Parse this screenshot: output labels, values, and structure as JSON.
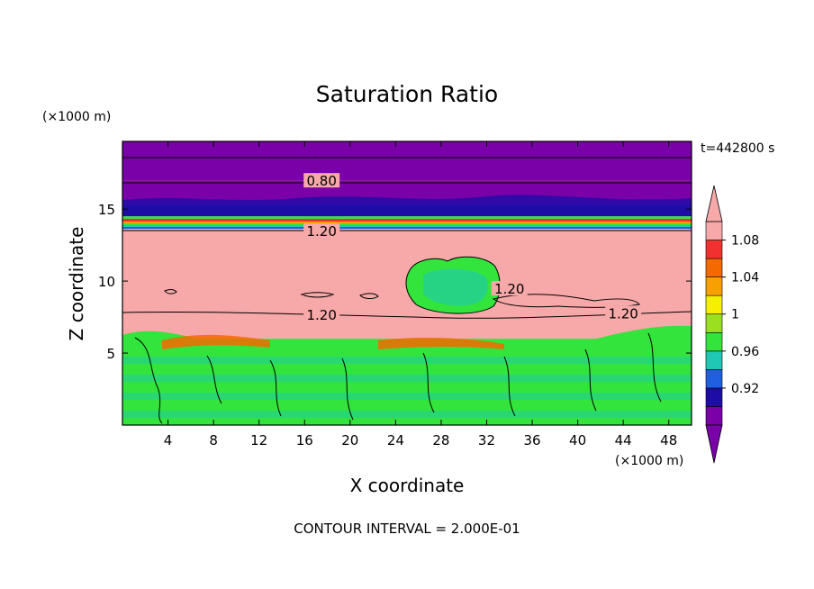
{
  "chart_data": {
    "type": "heatmap",
    "title": "Saturation Ratio",
    "xlabel": "X coordinate",
    "ylabel": "Z coordinate",
    "x_unit": "(×1000 m)",
    "y_unit": "(×1000 m)",
    "time_label": "t=442800 s",
    "footer": "CONTOUR INTERVAL = 2.000E-01",
    "xlim": [
      0,
      50
    ],
    "ylim": [
      0,
      19.7
    ],
    "x_ticks": [
      4,
      8,
      12,
      16,
      20,
      24,
      28,
      32,
      36,
      40,
      44,
      48
    ],
    "y_ticks": [
      5,
      10,
      15
    ],
    "contour_labels": [
      {
        "text": "0.80",
        "x": 17.5,
        "z": 17.0
      },
      {
        "text": "1.20",
        "x": 17.5,
        "z": 13.5
      },
      {
        "text": "1.20",
        "x": 34.0,
        "z": 9.5
      },
      {
        "text": "1.20",
        "x": 17.5,
        "z": 7.7
      },
      {
        "text": "1.20",
        "x": 44.0,
        "z": 7.8
      }
    ],
    "colorbar": {
      "levels": [
        0.92,
        0.96,
        1,
        1.04,
        1.08
      ],
      "level_labels": [
        "0.92",
        "0.96",
        "1",
        "1.04",
        "1.08"
      ],
      "colors": [
        "#7a00a8",
        "#1e0ca6",
        "#1f5fe0",
        "#1ec8b4",
        "#33e43c",
        "#9be020",
        "#f5f000",
        "#f7a100",
        "#f56a00",
        "#f23030",
        "#f7a8a8"
      ],
      "extend": "both"
    },
    "field_layers": [
      {
        "z_from": 0.0,
        "z_to": 6.0,
        "value": 1.0,
        "color": "#33e43c"
      },
      {
        "z_from": 6.0,
        "z_to": 13.9,
        "value": 1.12,
        "color": "#f7a8a8"
      },
      {
        "z_from": 13.9,
        "z_to": 14.5,
        "value": 1.0,
        "color": "#33e43c"
      },
      {
        "z_from": 14.5,
        "z_to": 15.3,
        "value": 0.94,
        "color": "#1e0ca6"
      },
      {
        "z_from": 15.3,
        "z_to": 17.0,
        "value": 0.9,
        "color": "#7a00a8"
      },
      {
        "z_from": 17.0,
        "z_to": 19.7,
        "value": 0.88,
        "color": "#7a00a8"
      }
    ]
  }
}
